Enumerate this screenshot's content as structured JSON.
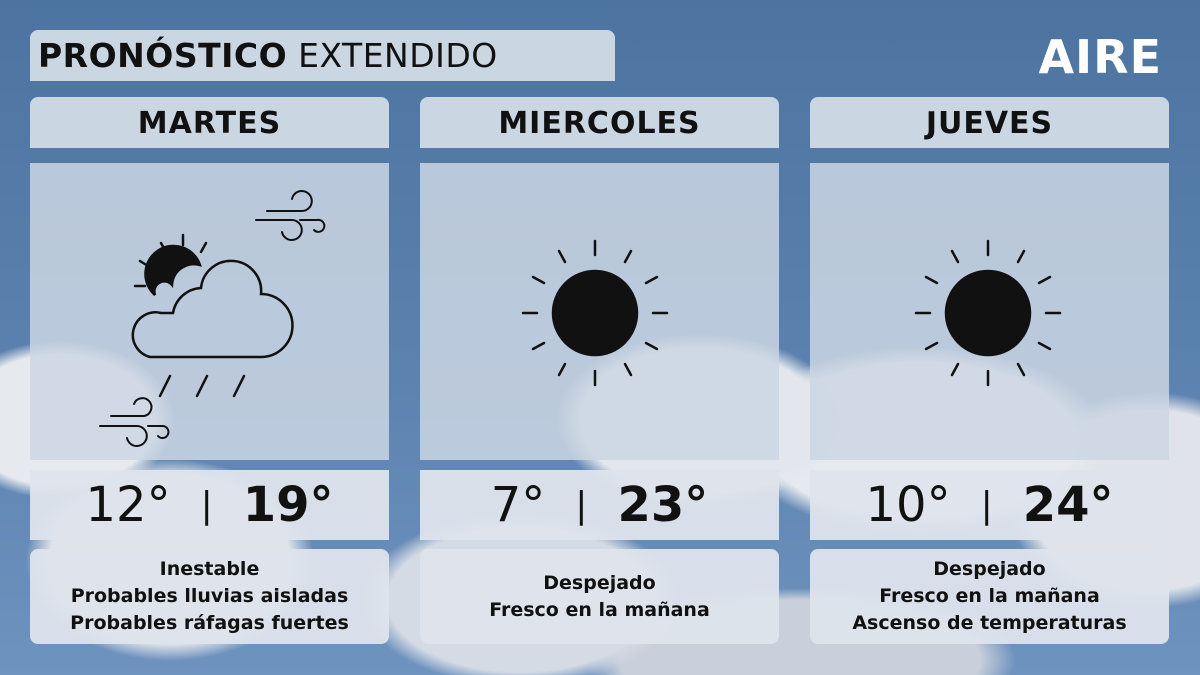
{
  "title": {
    "bold": "PRONÓSTICO",
    "light": "EXTENDIDO"
  },
  "logo": "AIRE",
  "days": [
    {
      "name": "MARTES",
      "icon": "partly-cloudy-rain-wind-icon",
      "min": "12°",
      "max": "19°",
      "sep": "|",
      "desc": [
        "Inestable",
        "Probables lluvias aisladas",
        "Probables ráfagas fuertes"
      ]
    },
    {
      "name": "MIERCOLES",
      "icon": "sun-icon",
      "min": "7°",
      "max": "23°",
      "sep": "|",
      "desc": [
        "Despejado",
        "Fresco en la mañana"
      ]
    },
    {
      "name": "JUEVES",
      "icon": "sun-icon",
      "min": "10°",
      "max": "24°",
      "sep": "|",
      "desc": [
        "Despejado",
        "Fresco en la mañana",
        "Ascenso de temperaturas"
      ]
    }
  ]
}
